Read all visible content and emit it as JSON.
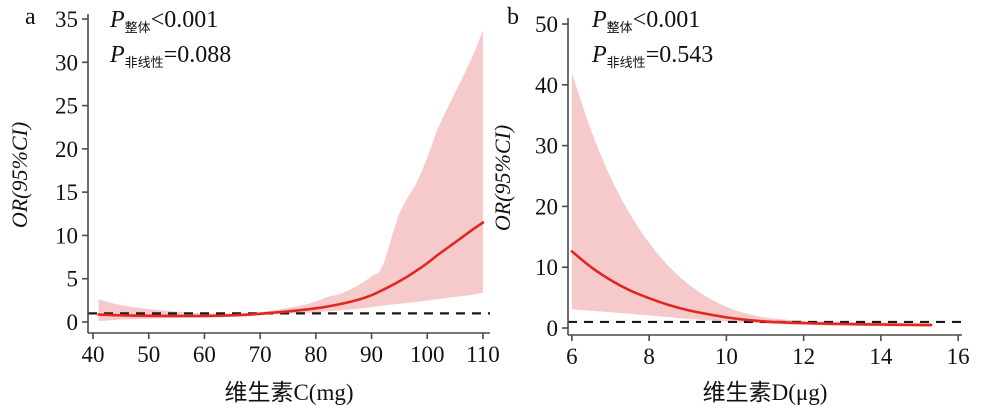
{
  "figure": {
    "background": "#ffffff",
    "description": "Restricted cubic spline plots of OR (95%CI) versus vitamin intake"
  },
  "colors": {
    "curve": "#e02822",
    "band": "#f6caca",
    "axis": "#4a4a4a",
    "reference": "#1a1a1a",
    "text": "#111111"
  },
  "chart_data": [
    {
      "type": "line",
      "panel_label": "a",
      "xlabel": "维生素C(mg)",
      "ylabel": "OR(95%CI)",
      "p_overall": {
        "symbol": "P",
        "sub": "整体",
        "value": "<0.001"
      },
      "p_nonlinear": {
        "symbol": "P",
        "sub": "非线性",
        "value": "=0.088"
      },
      "x_range": [
        40,
        110
      ],
      "y_range": [
        0,
        35
      ],
      "x_ticks": [
        40,
        50,
        60,
        70,
        80,
        90,
        100,
        110
      ],
      "y_ticks": [
        0,
        5,
        10,
        15,
        20,
        25,
        30,
        35
      ],
      "reference_line_y": 1,
      "legend": "none",
      "grid": false,
      "series": {
        "x": [
          41,
          45,
          50,
          55,
          60,
          65,
          68,
          70,
          72,
          75,
          78,
          80,
          82,
          85,
          88,
          90,
          92,
          95,
          98,
          100,
          102,
          105,
          108,
          110
        ],
        "or": [
          0.85,
          0.78,
          0.72,
          0.7,
          0.7,
          0.78,
          0.85,
          0.95,
          1.06,
          1.22,
          1.42,
          1.58,
          1.78,
          2.15,
          2.65,
          3.1,
          3.7,
          4.7,
          5.9,
          6.8,
          7.8,
          9.2,
          10.6,
          11.5
        ],
        "ci_lower": [
          0.1,
          0.28,
          0.38,
          0.46,
          0.52,
          0.6,
          0.68,
          0.78,
          0.86,
          0.96,
          1.05,
          1.12,
          1.22,
          1.38,
          1.56,
          1.7,
          1.88,
          2.1,
          2.32,
          2.48,
          2.65,
          2.9,
          3.15,
          3.4
        ],
        "ci_upper": [
          2.6,
          1.95,
          1.5,
          1.2,
          1.02,
          0.98,
          1.04,
          1.14,
          1.32,
          1.62,
          2.0,
          2.4,
          2.85,
          3.4,
          4.4,
          5.3,
          6.5,
          12.5,
          16.0,
          19.0,
          22.5,
          26.5,
          30.5,
          33.7
        ]
      }
    },
    {
      "type": "line",
      "panel_label": "b",
      "xlabel": "维生素D(μg)",
      "ylabel": "OR(95%CI)",
      "p_overall": {
        "symbol": "P",
        "sub": "整体",
        "value": "<0.001"
      },
      "p_nonlinear": {
        "symbol": "P",
        "sub": "非线性",
        "value": "=0.543"
      },
      "x_range": [
        6,
        16
      ],
      "y_range": [
        0,
        50
      ],
      "x_ticks": [
        6,
        8,
        10,
        12,
        14,
        16
      ],
      "y_ticks": [
        0,
        10,
        20,
        30,
        40,
        50
      ],
      "reference_line_y": 1,
      "legend": "none",
      "grid": false,
      "series": {
        "x": [
          6,
          6.5,
          7,
          7.5,
          8,
          8.5,
          9,
          9.5,
          10,
          10.5,
          11,
          11.5,
          12,
          12.5,
          13,
          13.5,
          14,
          14.5,
          15,
          15.3
        ],
        "or": [
          12.6,
          10.0,
          7.9,
          6.2,
          4.9,
          3.8,
          2.95,
          2.3,
          1.75,
          1.35,
          1.08,
          0.92,
          0.8,
          0.72,
          0.66,
          0.61,
          0.57,
          0.53,
          0.5,
          0.48
        ],
        "ci_lower": [
          3.1,
          2.85,
          2.6,
          2.35,
          2.05,
          1.8,
          1.5,
          1.3,
          1.05,
          0.88,
          0.72,
          0.6,
          0.52,
          0.46,
          0.4,
          0.35,
          0.3,
          0.26,
          0.22,
          0.2
        ],
        "ci_upper": [
          42.0,
          32.5,
          24.8,
          18.8,
          14.0,
          10.2,
          7.3,
          5.1,
          3.5,
          2.4,
          1.75,
          1.4,
          1.2,
          1.1,
          1.03,
          0.98,
          0.94,
          0.9,
          0.87,
          0.85
        ]
      }
    }
  ]
}
